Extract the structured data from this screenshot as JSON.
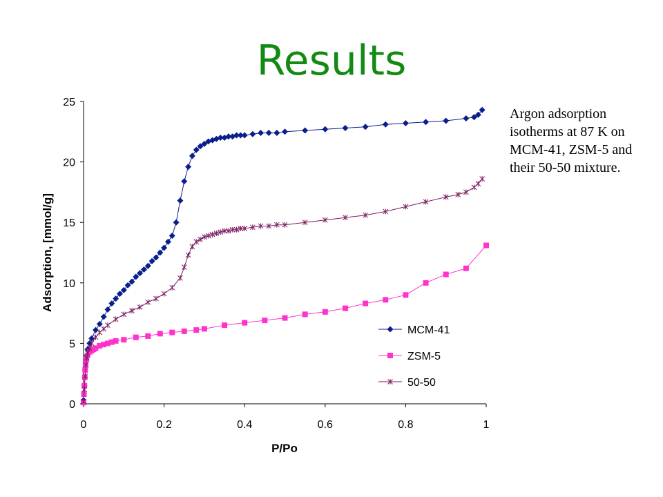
{
  "slide": {
    "title": "Results",
    "caption": "Argon adsorption isotherms at 87 K on MCM-41, ZSM-5 and their 50-50 mixture."
  },
  "chart_data": {
    "type": "scatter",
    "xlabel": "P/Po",
    "ylabel": "Adsorption, [mmol/g]",
    "xlim": [
      0,
      1
    ],
    "ylim": [
      0,
      25
    ],
    "xticks": [
      "0",
      "0.2",
      "0.4",
      "0.6",
      "0.8",
      "1"
    ],
    "yticks": [
      "0",
      "5",
      "10",
      "15",
      "20",
      "25"
    ],
    "grid": false,
    "legend_position": "lower-right",
    "series": [
      {
        "name": "MCM-41",
        "color": "#0a1e8c",
        "marker": "diamond",
        "x": [
          0.0,
          0.002,
          0.004,
          0.006,
          0.008,
          0.01,
          0.015,
          0.02,
          0.03,
          0.04,
          0.05,
          0.06,
          0.07,
          0.08,
          0.09,
          0.1,
          0.11,
          0.12,
          0.13,
          0.14,
          0.15,
          0.16,
          0.17,
          0.18,
          0.19,
          0.2,
          0.21,
          0.22,
          0.23,
          0.24,
          0.25,
          0.26,
          0.27,
          0.28,
          0.29,
          0.3,
          0.31,
          0.32,
          0.33,
          0.34,
          0.35,
          0.36,
          0.37,
          0.38,
          0.39,
          0.4,
          0.42,
          0.44,
          0.46,
          0.48,
          0.5,
          0.55,
          0.6,
          0.65,
          0.7,
          0.75,
          0.8,
          0.85,
          0.9,
          0.95,
          0.97,
          0.98,
          0.99
        ],
        "y": [
          0.3,
          1.5,
          2.8,
          3.6,
          4.0,
          4.5,
          5.0,
          5.4,
          6.1,
          6.6,
          7.2,
          7.8,
          8.3,
          8.7,
          9.1,
          9.4,
          9.8,
          10.1,
          10.5,
          10.8,
          11.1,
          11.4,
          11.8,
          12.1,
          12.5,
          12.9,
          13.4,
          13.9,
          15.0,
          16.8,
          18.4,
          19.6,
          20.5,
          21.0,
          21.3,
          21.5,
          21.7,
          21.8,
          21.9,
          22.0,
          22.0,
          22.1,
          22.1,
          22.2,
          22.2,
          22.2,
          22.3,
          22.4,
          22.4,
          22.4,
          22.5,
          22.6,
          22.7,
          22.8,
          22.9,
          23.1,
          23.2,
          23.3,
          23.4,
          23.6,
          23.7,
          23.9,
          24.3
        ]
      },
      {
        "name": "ZSM-5",
        "color": "#ff33cc",
        "marker": "square",
        "x": [
          0.0,
          0.001,
          0.002,
          0.003,
          0.004,
          0.005,
          0.007,
          0.01,
          0.015,
          0.02,
          0.025,
          0.03,
          0.04,
          0.05,
          0.06,
          0.07,
          0.08,
          0.1,
          0.13,
          0.16,
          0.19,
          0.22,
          0.25,
          0.28,
          0.3,
          0.35,
          0.4,
          0.45,
          0.5,
          0.55,
          0.6,
          0.65,
          0.7,
          0.75,
          0.8,
          0.85,
          0.9,
          0.95,
          1.0
        ],
        "y": [
          0.1,
          0.8,
          1.5,
          2.2,
          2.8,
          3.3,
          3.7,
          4.0,
          4.3,
          4.4,
          4.5,
          4.6,
          4.8,
          4.9,
          5.0,
          5.1,
          5.2,
          5.3,
          5.5,
          5.6,
          5.8,
          5.9,
          6.0,
          6.1,
          6.2,
          6.5,
          6.7,
          6.9,
          7.1,
          7.4,
          7.6,
          7.9,
          8.3,
          8.6,
          9.0,
          10.0,
          10.7,
          11.2,
          13.1
        ]
      },
      {
        "name": "50-50",
        "color": "#7a1a60",
        "marker": "star",
        "x": [
          0.0,
          0.002,
          0.004,
          0.006,
          0.008,
          0.01,
          0.015,
          0.02,
          0.03,
          0.04,
          0.05,
          0.06,
          0.08,
          0.1,
          0.12,
          0.14,
          0.16,
          0.18,
          0.2,
          0.22,
          0.24,
          0.25,
          0.26,
          0.27,
          0.28,
          0.29,
          0.3,
          0.31,
          0.32,
          0.33,
          0.34,
          0.35,
          0.36,
          0.37,
          0.38,
          0.39,
          0.4,
          0.42,
          0.44,
          0.46,
          0.48,
          0.5,
          0.55,
          0.6,
          0.65,
          0.7,
          0.75,
          0.8,
          0.85,
          0.9,
          0.93,
          0.95,
          0.97,
          0.98,
          0.99
        ],
        "y": [
          0.2,
          1.2,
          2.3,
          3.2,
          3.8,
          4.2,
          4.6,
          5.0,
          5.5,
          5.9,
          6.2,
          6.5,
          7.0,
          7.4,
          7.7,
          8.0,
          8.4,
          8.7,
          9.1,
          9.6,
          10.4,
          11.3,
          12.3,
          13.0,
          13.4,
          13.6,
          13.8,
          13.9,
          14.0,
          14.1,
          14.2,
          14.3,
          14.3,
          14.4,
          14.4,
          14.5,
          14.5,
          14.6,
          14.7,
          14.7,
          14.8,
          14.8,
          15.0,
          15.2,
          15.4,
          15.6,
          15.9,
          16.3,
          16.7,
          17.1,
          17.3,
          17.5,
          17.9,
          18.2,
          18.6
        ]
      }
    ]
  }
}
